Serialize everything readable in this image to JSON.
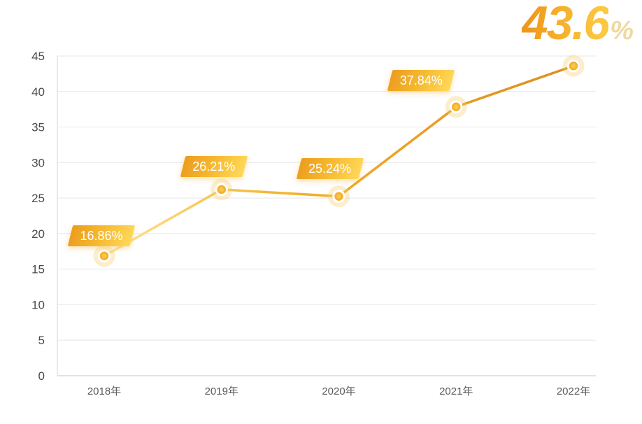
{
  "chart_data": {
    "type": "line",
    "title": "",
    "xlabel": "",
    "ylabel": "",
    "categories": [
      "2018年",
      "2019年",
      "2020年",
      "2021年",
      "2022年"
    ],
    "values": [
      16.86,
      26.21,
      25.24,
      37.84,
      43.6
    ],
    "point_labels": [
      "16.86%",
      "26.21%",
      "25.24%",
      "37.84%"
    ],
    "highlight": {
      "value": "43.6",
      "unit": "%"
    },
    "ylim": [
      0,
      45
    ],
    "yticks": [
      0,
      5,
      10,
      15,
      20,
      25,
      30,
      35,
      40,
      45
    ],
    "grid": true,
    "legend_position": "none",
    "colors": {
      "background": "#ffffff",
      "line_gradient_start": "#ffe49b",
      "line_gradient_mid": "#f2b52e",
      "line_gradient_end": "#d9901d",
      "badge_gradient_start": "#ec9c1e",
      "badge_gradient_end": "#ffd95a",
      "badge_text": "#ffffff",
      "marker_fill": "#f3a81f",
      "marker_fill_light": "#fdd052",
      "marker_ring": "#ffffff",
      "marker_glow": "rgba(246,206,106,0.34)",
      "highlight_gradient_start": "#f0981c",
      "highlight_gradient_end": "#fbc843",
      "highlight_unit_color": "#eed9a0",
      "grid_line": "#ececec",
      "axis_line": "#d9d9d9",
      "y_tick_color": "#4a4a4a",
      "x_tick_color": "#5a5a5a"
    }
  }
}
